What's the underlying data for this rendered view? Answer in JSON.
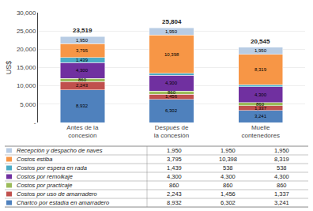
{
  "chart_data": {
    "type": "bar",
    "stacked": true,
    "categories": [
      "Antes de la\nconcesión",
      "Después de\nla concesión",
      "Muelle\ncontenedores"
    ],
    "series": [
      {
        "name": "Chartco por estadía en amarradero",
        "color": "#4f81bd",
        "values": [
          8932,
          6302,
          3241
        ],
        "value_labels": [
          "8,932",
          "6,302",
          "3,241"
        ],
        "table_values": [
          "8,932",
          "6,302",
          "3,241"
        ]
      },
      {
        "name": "Costos por uso de amarradero",
        "color": "#c0504d",
        "values": [
          2243,
          1456,
          1337
        ],
        "value_labels": [
          "2,243",
          "1,456",
          "1,337"
        ],
        "table_values": [
          "2,243",
          "1,456",
          "1,337"
        ]
      },
      {
        "name": "Costos por practicaje",
        "color": "#9bbb59",
        "values": [
          860,
          860,
          860
        ],
        "value_labels": [
          "860",
          "860",
          "860"
        ],
        "table_values": [
          "860",
          "860",
          "860"
        ]
      },
      {
        "name": "Costos por remolkaje",
        "color": "#7030a0",
        "values": [
          4300,
          4300,
          4300
        ],
        "value_labels": [
          "4,300",
          "4,300",
          "4,300"
        ],
        "table_values": [
          "4,300",
          "4,300",
          "4,300"
        ]
      },
      {
        "name": "Costos por espera en rada",
        "color": "#4bacc6",
        "values": [
          1439,
          538,
          538
        ],
        "value_labels": [
          "1,439",
          null,
          null
        ],
        "table_values": [
          "1,439",
          "538",
          "538"
        ]
      },
      {
        "name": "Costos estiba",
        "color": "#f79646",
        "values": [
          3795,
          10398,
          8319
        ],
        "value_labels": [
          "3,795",
          "10,398",
          "8,319"
        ],
        "table_values": [
          "3,795",
          "10,398",
          "8,319"
        ]
      },
      {
        "name": "Recepción y despacho de naves",
        "color": "#b8cce4",
        "values": [
          1950,
          1950,
          1950
        ],
        "value_labels": [
          "1,950",
          "1,950",
          "1,950"
        ],
        "table_values": [
          "1,950",
          "1,950",
          "1,950"
        ]
      }
    ],
    "totals": [
      23519,
      25804,
      20545
    ],
    "total_labels": [
      "23,519",
      "25,804",
      "20,545"
    ],
    "ylabel": "US$",
    "ylim": [
      0,
      30000
    ],
    "yticks": [
      {
        "value": 0,
        "label": "-"
      },
      {
        "value": 5000,
        "label": "5,000"
      },
      {
        "value": 10000,
        "label": "10,000"
      },
      {
        "value": 15000,
        "label": "15,000"
      },
      {
        "value": 20000,
        "label": "20,000"
      },
      {
        "value": 25000,
        "label": "25,000"
      },
      {
        "value": 30000,
        "label": "30,000"
      }
    ],
    "grid": true,
    "data_labels": true
  }
}
